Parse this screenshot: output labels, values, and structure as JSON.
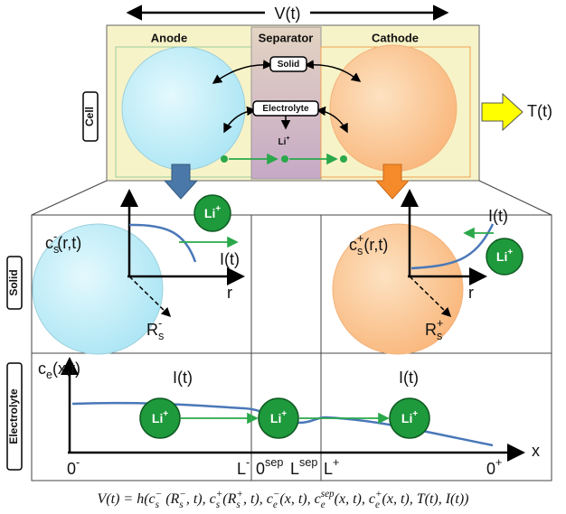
{
  "voltage": "V(t)",
  "cell": {
    "label": "Cell",
    "regions": [
      "Anode",
      "Separator",
      "Cathode"
    ],
    "solid": "Solid",
    "electrolyte": "Electrolyte",
    "ion": [
      "Li",
      {
        "sup": "+"
      }
    ],
    "temperature": "T(t)"
  },
  "solid_panel": {
    "label": "Solid",
    "anode": {
      "concentration": [
        "c",
        {
          "sub": "s",
          "sup": "-"
        },
        "(r,t)"
      ],
      "current": "I(t)",
      "axis": "r",
      "radius": [
        "R",
        {
          "sub": "s",
          "sup": "-"
        }
      ],
      "ion": [
        "Li",
        {
          "sup": "+"
        }
      ]
    },
    "cathode": {
      "concentration": [
        "c",
        {
          "sub": "s",
          "sup": "+"
        },
        "(r,t)"
      ],
      "current": "I(t)",
      "axis": "r",
      "radius": [
        "R",
        {
          "sub": "s",
          "sup": "+"
        }
      ],
      "ion": [
        "Li",
        {
          "sup": "+"
        }
      ]
    }
  },
  "electrolyte_panel": {
    "label": "Electrolyte",
    "concentration": [
      "c",
      {
        "sub": "e"
      },
      "(x,t)"
    ],
    "currents": [
      "I(t)",
      "I(t)"
    ],
    "ions": [
      [
        "Li",
        {
          "sup": "+"
        }
      ],
      [
        "Li",
        {
          "sup": "+"
        }
      ],
      [
        "Li",
        {
          "sup": "+"
        }
      ]
    ],
    "axis": "x",
    "ticks": [
      [
        "0",
        {
          "sup": "-"
        }
      ],
      [
        "L",
        {
          "sup": "-"
        }
      ],
      [
        "0",
        {
          "sup": "sep"
        }
      ],
      [
        "L",
        {
          "sup": "sep"
        }
      ],
      [
        "L",
        {
          "sup": "+"
        }
      ],
      [
        "0",
        {
          "sup": "+"
        }
      ]
    ]
  },
  "equation": [
    "V(t) = h(c",
    {
      "sub": "s",
      "sup": "−"
    },
    " (R",
    {
      "sub": "s",
      "sup": "−"
    },
    ", t), c",
    {
      "sub": "s",
      "sup": "+"
    },
    "(R",
    {
      "sub": "s",
      "sup": "+"
    },
    ", t), c",
    {
      "sub": "e",
      "sup": "−"
    },
    "(x, t), c",
    {
      "sub": "e",
      "sup": "sep"
    },
    "(x, t), c",
    {
      "sub": "e",
      "sup": "+"
    },
    "(x, t), T(t), I(t))"
  ]
}
